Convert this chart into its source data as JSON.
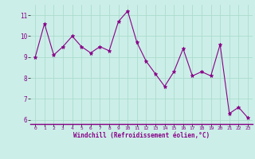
{
  "x": [
    0,
    1,
    2,
    3,
    4,
    5,
    6,
    7,
    8,
    9,
    10,
    11,
    12,
    13,
    14,
    15,
    16,
    17,
    18,
    19,
    20,
    21,
    22,
    23
  ],
  "y": [
    9.0,
    10.6,
    9.1,
    9.5,
    10.0,
    9.5,
    9.2,
    9.5,
    9.3,
    10.7,
    11.2,
    9.7,
    8.8,
    8.2,
    7.6,
    8.3,
    9.4,
    8.1,
    8.3,
    8.1,
    9.6,
    6.3,
    6.6,
    6.1
  ],
  "line_color": "#880088",
  "marker": "*",
  "marker_size": 3.5,
  "bg_color": "#cceee8",
  "grid_color": "#aaddcc",
  "xlabel": "Windchill (Refroidissement éolien,°C)",
  "xlabel_color": "#880088",
  "tick_color": "#880088",
  "ylim": [
    5.8,
    11.5
  ],
  "yticks": [
    6,
    7,
    8,
    9,
    10,
    11
  ],
  "xlim": [
    -0.5,
    23.5
  ],
  "xticks": [
    0,
    1,
    2,
    3,
    4,
    5,
    6,
    7,
    8,
    9,
    10,
    11,
    12,
    13,
    14,
    15,
    16,
    17,
    18,
    19,
    20,
    21,
    22,
    23
  ]
}
